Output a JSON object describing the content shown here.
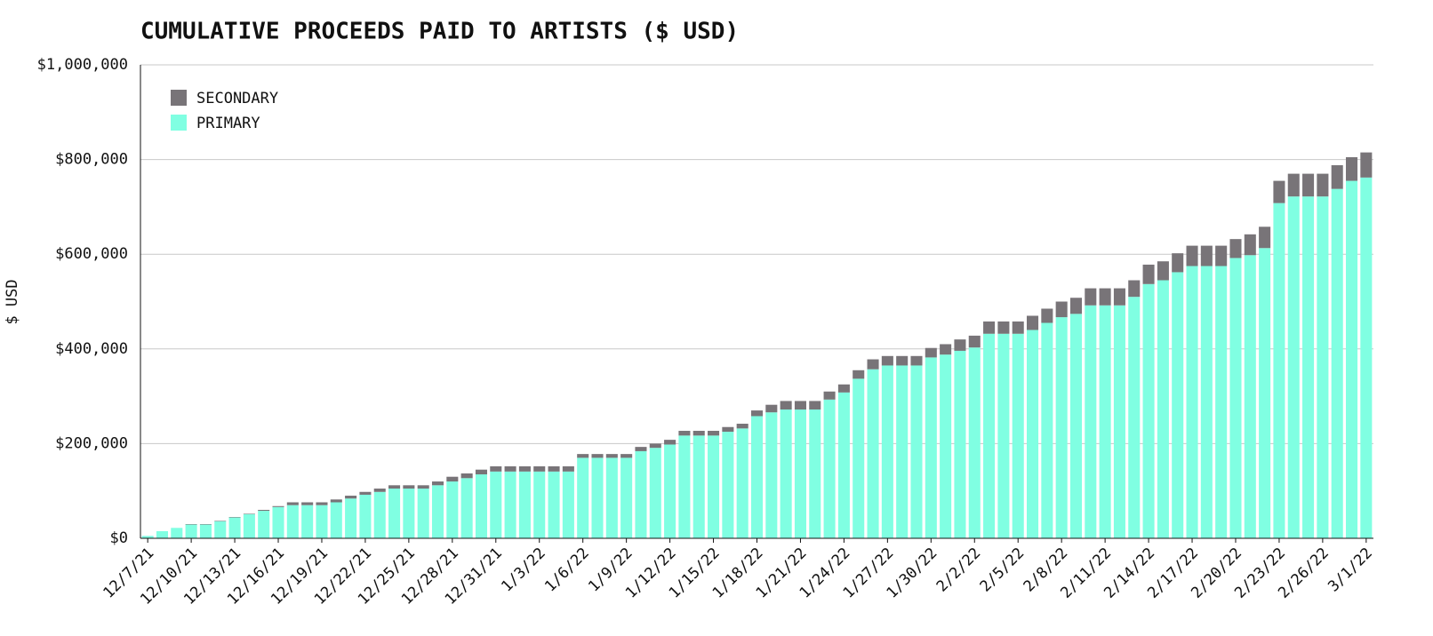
{
  "chart_data": {
    "type": "stacked_bar",
    "title": "CUMULATIVE PROCEEDS PAID TO ARTISTS ($ USD)",
    "ylabel": "$ USD",
    "categories": [
      "12/7/21",
      null,
      null,
      "12/10/21",
      null,
      null,
      "12/13/21",
      null,
      null,
      "12/16/21",
      null,
      null,
      "12/19/21",
      null,
      null,
      "12/22/21",
      null,
      null,
      "12/25/21",
      null,
      null,
      "12/28/21",
      null,
      null,
      "12/31/21",
      null,
      null,
      "1/3/22",
      null,
      null,
      "1/6/22",
      null,
      null,
      "1/9/22",
      null,
      null,
      "1/12/22",
      null,
      null,
      "1/15/22",
      null,
      null,
      "1/18/22",
      null,
      null,
      "1/21/22",
      null,
      null,
      "1/24/22",
      null,
      null,
      "1/27/22",
      null,
      null,
      "1/30/22",
      null,
      null,
      "2/2/22",
      null,
      null,
      "2/5/22",
      null,
      null,
      "2/8/22",
      null,
      null,
      "2/11/22",
      null,
      null,
      "2/14/22",
      null,
      null,
      "2/17/22",
      null,
      null,
      "2/20/22",
      null,
      null,
      "2/23/22",
      null,
      null,
      "2/26/22",
      null,
      null,
      "3/1/22"
    ],
    "series": [
      {
        "name": "PRIMARY",
        "color": "#80ffe2",
        "values": [
          5000,
          15000,
          22000,
          29000,
          29000,
          36000,
          44000,
          51000,
          58000,
          66000,
          70000,
          70000,
          70000,
          76000,
          84000,
          92000,
          98000,
          105000,
          105000,
          105000,
          112000,
          120000,
          127000,
          135000,
          141000,
          141000,
          141000,
          141000,
          141000,
          141000,
          170000,
          170000,
          170000,
          170000,
          184000,
          191000,
          198000,
          217000,
          217000,
          217000,
          225000,
          232000,
          258000,
          266000,
          272000,
          272000,
          272000,
          293000,
          308000,
          337000,
          357000,
          365000,
          365000,
          365000,
          382000,
          388000,
          396000,
          403000,
          432000,
          432000,
          432000,
          440000,
          455000,
          467000,
          474000,
          492000,
          492000,
          492000,
          510000,
          537000,
          545000,
          562000,
          575000,
          575000,
          575000,
          592000,
          598000,
          613000,
          708000,
          722000,
          722000,
          722000,
          738000,
          755000,
          762000
        ]
      },
      {
        "name": "SECONDARY",
        "color": "#787478",
        "values": [
          0,
          0,
          0,
          1000,
          1000,
          1000,
          1000,
          1000,
          2000,
          2000,
          6000,
          6000,
          6000,
          6000,
          6000,
          6000,
          7000,
          7000,
          7000,
          7000,
          8000,
          10000,
          10000,
          10000,
          11000,
          11000,
          11000,
          11000,
          11000,
          11000,
          8000,
          8000,
          8000,
          8000,
          9000,
          9000,
          10000,
          10000,
          10000,
          10000,
          10000,
          10000,
          12000,
          16000,
          18000,
          18000,
          18000,
          17000,
          17000,
          18000,
          21000,
          20000,
          20000,
          20000,
          20000,
          22000,
          24000,
          25000,
          26000,
          26000,
          26000,
          30000,
          30000,
          33000,
          34000,
          36000,
          36000,
          36000,
          35000,
          41000,
          40000,
          40000,
          43000,
          43000,
          43000,
          40000,
          44000,
          45000,
          47000,
          48000,
          48000,
          48000,
          50000,
          50000,
          53000
        ]
      }
    ],
    "ylim": [
      0,
      1000000
    ],
    "yticks": [
      {
        "value": 0,
        "label": "$0"
      },
      {
        "value": 200000,
        "label": "$200,000"
      },
      {
        "value": 400000,
        "label": "$400,000"
      },
      {
        "value": 600000,
        "label": "$600,000"
      },
      {
        "value": 800000,
        "label": "$800,000"
      },
      {
        "value": 1000000,
        "label": "$1,000,000"
      }
    ],
    "grid": true,
    "legend": "upper left"
  }
}
